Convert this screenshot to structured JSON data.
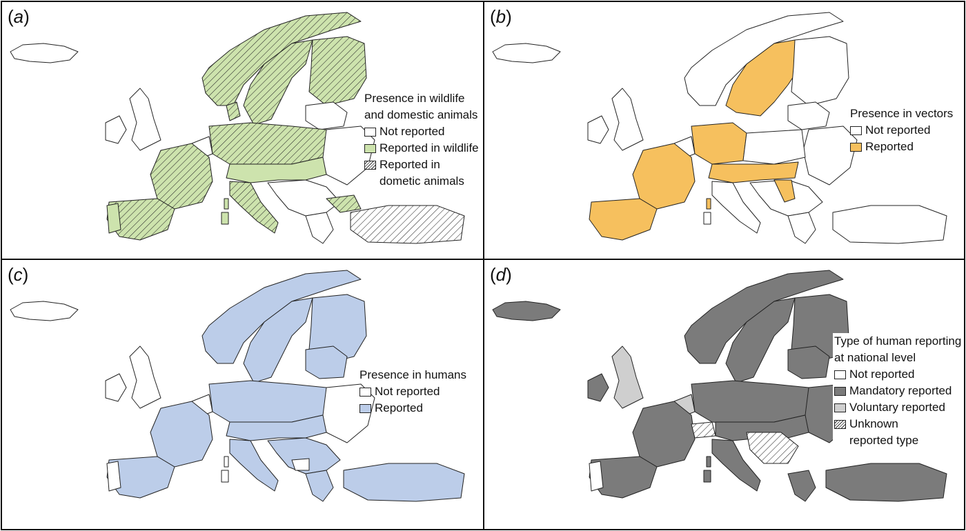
{
  "panels": [
    {
      "label": "a",
      "legend_title": [
        "Presence in wildlife",
        "and domestic animals"
      ],
      "legend_items": [
        {
          "label": "Not reported",
          "swatch": "white",
          "color": "#ffffff"
        },
        {
          "label": "Reported in wildlife",
          "swatch": "green",
          "color": "#cde3ad"
        },
        {
          "label": "Reported in",
          "label2": "dometic animals",
          "swatch": "hatch",
          "color": "#ffffff"
        }
      ]
    },
    {
      "label": "b",
      "legend_title": [
        "Presence in vectors"
      ],
      "legend_items": [
        {
          "label": "Not reported",
          "swatch": "white",
          "color": "#ffffff"
        },
        {
          "label": "Reported",
          "swatch": "orange",
          "color": "#f6c05e"
        }
      ]
    },
    {
      "label": "c",
      "legend_title": [
        "Presence in humans"
      ],
      "legend_items": [
        {
          "label": "Not reported",
          "swatch": "white",
          "color": "#ffffff"
        },
        {
          "label": "Reported",
          "swatch": "blue",
          "color": "#bccde9"
        }
      ]
    },
    {
      "label": "d",
      "legend_title": [
        "Type of human reporting",
        "at national level"
      ],
      "legend_items": [
        {
          "label": "Not reported",
          "swatch": "white",
          "color": "#ffffff"
        },
        {
          "label": "Mandatory reported",
          "swatch": "dark",
          "color": "#7b7b7b"
        },
        {
          "label": "Voluntary reported",
          "swatch": "light",
          "color": "#cfcfcf"
        },
        {
          "label": "Unknown",
          "label2": "reported type",
          "swatch": "hatch",
          "color": "#ffffff"
        }
      ]
    }
  ]
}
